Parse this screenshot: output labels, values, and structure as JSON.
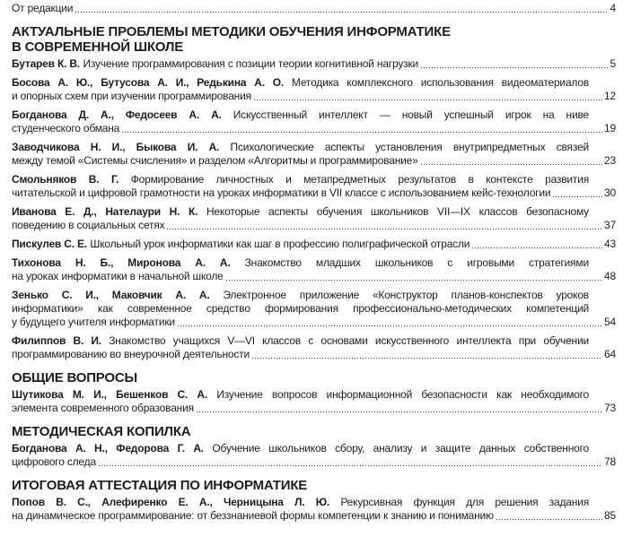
{
  "page": {
    "background_color": "#ffffff",
    "text_color": "#1d1d1d",
    "leader_dot_color": "#3a3a3a"
  },
  "toc": {
    "front_item": {
      "label": "От редакции",
      "page": "4"
    },
    "sections": [
      {
        "title_lines": [
          "АКТУАЛЬНЫЕ ПРОБЛЕМЫ МЕТОДИКИ ОБУЧЕНИЯ ИНФОРМАТИКЕ",
          "В СОВРЕМЕННОЙ ШКОЛЕ"
        ],
        "entries": [
          {
            "authors": "Бутарев К. В.",
            "lines": [
              "Изучение программирования с позиции теории когнитивной нагрузки"
            ],
            "page": "5"
          },
          {
            "authors": "Босова А. Ю., Бутусова А. И., Редькина А. О.",
            "lines": [
              "Методика комплексного использования видеоматериалов",
              "и опорных схем при изучении программирования"
            ],
            "page": "12"
          },
          {
            "authors": "Богданова Д. А., Федосеев А. А.",
            "lines": [
              "Искусственный интеллект — новый успешный игрок на ниве",
              "студенческого обмана"
            ],
            "page": "19"
          },
          {
            "authors": "Заводчикова Н. И., Быкова И. А.",
            "lines": [
              "Психологические аспекты установления внутрипредметных связей",
              "между темой «Системы счисления» и разделом «Алгоритмы и программирование»"
            ],
            "page": "23"
          },
          {
            "authors": "Смольняков В. Г.",
            "lines": [
              "Формирование личностных и метапредметных результатов в контексте развития",
              "читательской и цифровой грамотности на уроках информатики в VII классе с использованием кейс-технологии"
            ],
            "page": "30"
          },
          {
            "authors": "Иванова Е. Д., Нателаури Н. К.",
            "lines": [
              "Некоторые аспекты обучения школьников VII—IX классов безопасному",
              "поведению в социальных сетях"
            ],
            "page": "37"
          },
          {
            "authors": "Пискулев С. Е.",
            "lines": [
              "Школьный урок информатики как шаг в профессию полиграфической отрасли"
            ],
            "page": "43"
          },
          {
            "authors": "Тихонова Н. Б., Миронова А. А.",
            "lines": [
              "Знакомство младших школьников с игровыми стратегиями",
              "на уроках информатики в начальной школе"
            ],
            "page": "48"
          },
          {
            "authors": "Зенько С. И., Маковчик А. А.",
            "lines": [
              "Электронное приложение «Конструктор планов-конспектов уроков",
              "информатики» как современное средство формирования профессионально-методических компетенций",
              "у будущего учителя информатики"
            ],
            "page": "54"
          },
          {
            "authors": "Филиппов В. И.",
            "lines": [
              "Знакомство учащихся V—VI классов с основами искусственного интеллекта при обучении",
              "программированию во внеурочной деятельности"
            ],
            "page": "64"
          }
        ]
      },
      {
        "title_lines": [
          "ОБЩИЕ ВОПРОСЫ"
        ],
        "entries": [
          {
            "authors": "Шутикова М. И., Бешенков С. А.",
            "lines": [
              "Изучение вопросов информационной безопасности как необходимого",
              "элемента современного образования"
            ],
            "page": "73"
          }
        ]
      },
      {
        "title_lines": [
          "МЕТОДИЧЕСКАЯ КОПИЛКА"
        ],
        "entries": [
          {
            "authors": "Богданова А. Н., Федорова Г. А.",
            "lines": [
              "Обучение школьников сбору, анализу и защите данных собственного",
              "цифрового следа"
            ],
            "page": "78"
          }
        ]
      },
      {
        "title_lines": [
          "ИТОГОВАЯ АТТЕСТАЦИЯ ПО ИНФОРМАТИКЕ"
        ],
        "entries": [
          {
            "authors": "Попов В. С., Алефиренко Е. А., Черницына Л. Ю.",
            "lines": [
              "Рекурсивная функция для решения задания",
              "на динамическое программирование: от беззнаниевой формы компетенции к знанию и пониманию"
            ],
            "page": "85"
          }
        ]
      }
    ]
  }
}
